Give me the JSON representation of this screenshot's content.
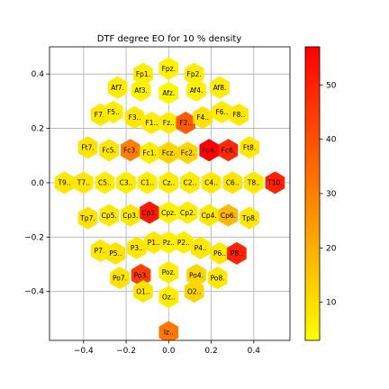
{
  "chart_data": {
    "type": "heatmap",
    "title": "DTF degree EO for 10 % density",
    "xlabel": "",
    "ylabel": "",
    "xlim": [
      -0.56,
      0.57
    ],
    "ylim": [
      -0.58,
      0.5
    ],
    "xticks": [
      "−0.4",
      "−0.2",
      "0.0",
      "0.2",
      "0.4"
    ],
    "xtick_values": [
      -0.4,
      -0.2,
      0.0,
      0.2,
      0.4
    ],
    "yticks": [
      "0.4",
      "0.2",
      "0.0",
      "−0.2",
      "−0.4"
    ],
    "ytick_values": [
      0.4,
      0.2,
      0.0,
      -0.2,
      -0.4
    ],
    "grid": true,
    "colormap": "autumn_r",
    "colorbar": {
      "min": 3,
      "max": 57,
      "ticks": [
        "10",
        "20",
        "30",
        "40",
        "50"
      ],
      "tick_values": [
        10,
        20,
        30,
        40,
        50
      ]
    },
    "points": [
      {
        "label": "Fp1.",
        "x": -0.12,
        "y": 0.4,
        "value": 7
      },
      {
        "label": "Fpz.",
        "x": 0.0,
        "y": 0.42,
        "value": 6
      },
      {
        "label": "Fp2.",
        "x": 0.12,
        "y": 0.4,
        "value": 7
      },
      {
        "label": "Af7.",
        "x": -0.24,
        "y": 0.35,
        "value": 7
      },
      {
        "label": "Af3.",
        "x": -0.13,
        "y": 0.34,
        "value": 6
      },
      {
        "label": "Afz.",
        "x": 0.0,
        "y": 0.33,
        "value": 5
      },
      {
        "label": "Af4.",
        "x": 0.13,
        "y": 0.34,
        "value": 6
      },
      {
        "label": "Af8.",
        "x": 0.24,
        "y": 0.35,
        "value": 7
      },
      {
        "label": "F7..",
        "x": -0.32,
        "y": 0.25,
        "value": 8
      },
      {
        "label": "F5..",
        "x": -0.26,
        "y": 0.26,
        "value": 7
      },
      {
        "label": "F3..",
        "x": -0.16,
        "y": 0.24,
        "value": 8
      },
      {
        "label": "F1..",
        "x": -0.08,
        "y": 0.22,
        "value": 7
      },
      {
        "label": "Fz..",
        "x": 0.0,
        "y": 0.22,
        "value": 7
      },
      {
        "label": "F2..",
        "x": 0.08,
        "y": 0.22,
        "value": 38
      },
      {
        "label": "F4..",
        "x": 0.16,
        "y": 0.24,
        "value": 9
      },
      {
        "label": "F6..",
        "x": 0.25,
        "y": 0.26,
        "value": 7
      },
      {
        "label": "F8..",
        "x": 0.33,
        "y": 0.25,
        "value": 8
      },
      {
        "label": "Ft7.",
        "x": -0.38,
        "y": 0.13,
        "value": 9
      },
      {
        "label": "Fc5.",
        "x": -0.28,
        "y": 0.12,
        "value": 8
      },
      {
        "label": "Fc3.",
        "x": -0.18,
        "y": 0.12,
        "value": 30
      },
      {
        "label": "Fc1.",
        "x": -0.09,
        "y": 0.11,
        "value": 7
      },
      {
        "label": "Fcz.",
        "x": 0.0,
        "y": 0.11,
        "value": 12
      },
      {
        "label": "Fc2.",
        "x": 0.09,
        "y": 0.11,
        "value": 12
      },
      {
        "label": "Fc4.",
        "x": 0.19,
        "y": 0.12,
        "value": 57
      },
      {
        "label": "Fc6.",
        "x": 0.28,
        "y": 0.12,
        "value": 48
      },
      {
        "label": "Ft8.",
        "x": 0.38,
        "y": 0.13,
        "value": 8
      },
      {
        "label": "T9..",
        "x": -0.49,
        "y": 0.0,
        "value": 8
      },
      {
        "label": "T7..",
        "x": -0.4,
        "y": 0.0,
        "value": 8
      },
      {
        "label": "C5..",
        "x": -0.3,
        "y": 0.0,
        "value": 7
      },
      {
        "label": "C3..",
        "x": -0.2,
        "y": 0.0,
        "value": 7
      },
      {
        "label": "C1..",
        "x": -0.1,
        "y": 0.0,
        "value": 7
      },
      {
        "label": "Cz..",
        "x": 0.0,
        "y": 0.0,
        "value": 7
      },
      {
        "label": "C2..",
        "x": 0.1,
        "y": 0.0,
        "value": 7
      },
      {
        "label": "C4..",
        "x": 0.2,
        "y": 0.0,
        "value": 8
      },
      {
        "label": "C6..",
        "x": 0.3,
        "y": 0.0,
        "value": 9
      },
      {
        "label": "T8..",
        "x": 0.4,
        "y": 0.0,
        "value": 8
      },
      {
        "label": "T10.",
        "x": 0.5,
        "y": 0.0,
        "value": 50
      },
      {
        "label": "Tp7.",
        "x": -0.38,
        "y": -0.13,
        "value": 9
      },
      {
        "label": "Cp5.",
        "x": -0.28,
        "y": -0.12,
        "value": 8
      },
      {
        "label": "Cp3.",
        "x": -0.18,
        "y": -0.12,
        "value": 8
      },
      {
        "label": "Cp1.",
        "x": -0.09,
        "y": -0.11,
        "value": 52
      },
      {
        "label": "Cpz.",
        "x": 0.0,
        "y": -0.11,
        "value": 6
      },
      {
        "label": "Cp2.",
        "x": 0.09,
        "y": -0.11,
        "value": 7
      },
      {
        "label": "Cp4.",
        "x": 0.19,
        "y": -0.12,
        "value": 8
      },
      {
        "label": "Cp6.",
        "x": 0.28,
        "y": -0.12,
        "value": 18
      },
      {
        "label": "Tp8.",
        "x": 0.38,
        "y": -0.13,
        "value": 8
      },
      {
        "label": "Pz..",
        "x": 0.0,
        "y": -0.22,
        "value": 6
      },
      {
        "label": "P7..",
        "x": -0.32,
        "y": -0.25,
        "value": 8
      },
      {
        "label": "P5..",
        "x": -0.25,
        "y": -0.26,
        "value": 9
      },
      {
        "label": "P3..",
        "x": -0.15,
        "y": -0.24,
        "value": 8
      },
      {
        "label": "P1..",
        "x": -0.07,
        "y": -0.22,
        "value": 8
      },
      {
        "label": "P2..",
        "x": 0.07,
        "y": -0.22,
        "value": 7
      },
      {
        "label": "P4..",
        "x": 0.15,
        "y": -0.24,
        "value": 8
      },
      {
        "label": "P6..",
        "x": 0.24,
        "y": -0.26,
        "value": 8
      },
      {
        "label": "P8..",
        "x": 0.32,
        "y": -0.26,
        "value": 50
      },
      {
        "label": "Po7.",
        "x": -0.23,
        "y": -0.35,
        "value": 9
      },
      {
        "label": "Po3.",
        "x": -0.13,
        "y": -0.34,
        "value": 44
      },
      {
        "label": "Poz.",
        "x": 0.0,
        "y": -0.33,
        "value": 7
      },
      {
        "label": "Po4.",
        "x": 0.13,
        "y": -0.34,
        "value": 12
      },
      {
        "label": "Po8.",
        "x": 0.23,
        "y": -0.35,
        "value": 8
      },
      {
        "label": "O1..",
        "x": -0.12,
        "y": -0.4,
        "value": 8
      },
      {
        "label": "Oz..",
        "x": 0.0,
        "y": -0.42,
        "value": 7
      },
      {
        "label": "O2..",
        "x": 0.12,
        "y": -0.4,
        "value": 12
      },
      {
        "label": "Iz..",
        "x": 0.0,
        "y": -0.55,
        "value": 32
      }
    ]
  }
}
